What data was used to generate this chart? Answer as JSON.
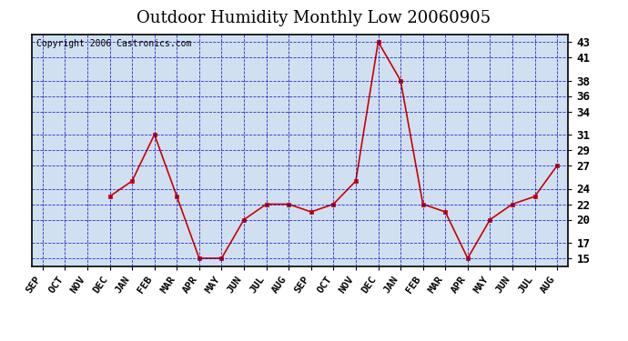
{
  "title": "Outdoor Humidity Monthly Low 20060905",
  "copyright": "Copyright 2006 Castronics.com",
  "categories": [
    "SEP",
    "OCT",
    "NOV",
    "DEC",
    "JAN",
    "FEB",
    "MAR",
    "APR",
    "MAY",
    "JUN",
    "JUL",
    "AUG",
    "SEP",
    "OCT",
    "NOV",
    "DEC",
    "JAN",
    "FEB",
    "MAR",
    "APR",
    "MAY",
    "JUN",
    "JUL",
    "AUG"
  ],
  "values": [
    null,
    null,
    null,
    23,
    25,
    31,
    23,
    15,
    15,
    20,
    22,
    22,
    21,
    22,
    25,
    43,
    38,
    22,
    21,
    15,
    20,
    22,
    23,
    27
  ],
  "ylim": [
    14,
    44
  ],
  "yticks": [
    15,
    17,
    20,
    22,
    24,
    27,
    29,
    31,
    34,
    36,
    38,
    41,
    43
  ],
  "bg_color": "#d0e0f0",
  "line_color": "#cc0000",
  "grid_color": "#0000bb",
  "title_fontsize": 13,
  "copyright_fontsize": 7,
  "tick_fontsize": 8,
  "ytick_fontsize": 9
}
